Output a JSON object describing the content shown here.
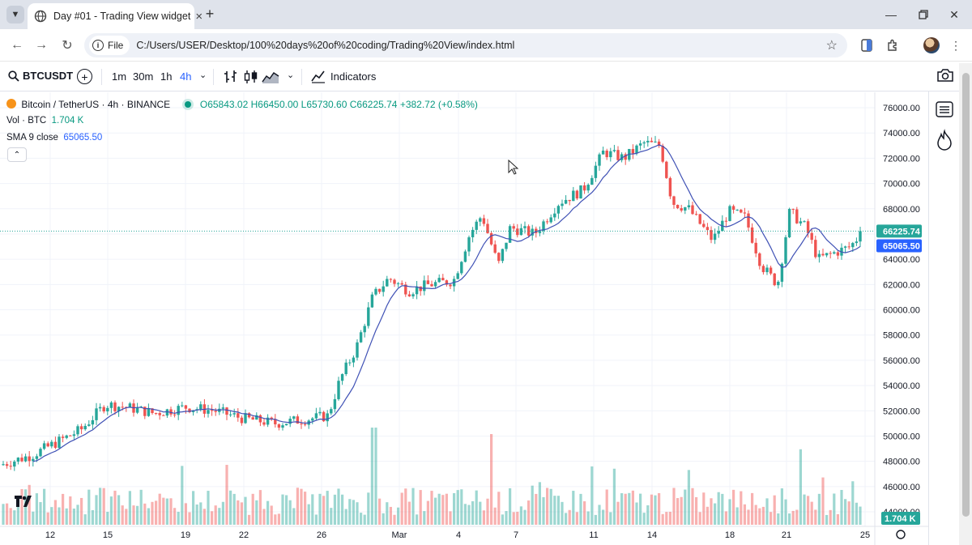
{
  "browser": {
    "tab_title": "Day #01 - Trading View widget",
    "new_tab_label": "+",
    "omnibox_label": "File",
    "url": "C:/Users/USER/Desktop/100%20days%20of%20coding/Trading%20View/index.html"
  },
  "toolbar": {
    "symbol": "BTCUSDT",
    "intervals": [
      "1m",
      "30m",
      "1h",
      "4h"
    ],
    "active_interval": "4h",
    "indicators_label": "Indicators"
  },
  "legend": {
    "title": "Bitcoin / TetherUS · 4h · BINANCE",
    "open": "O65843.02",
    "high": "H66450.00",
    "low": "L65730.60",
    "close": "C66225.74",
    "change": "+382.72 (+0.58%)",
    "vol_label": "Vol · BTC",
    "vol_value": "1.704 K",
    "sma_label": "SMA 9 close",
    "sma_value": "65065.50"
  },
  "colors": {
    "up": "#26a69a",
    "down": "#ef5350",
    "sma": "#3f51b5",
    "accent": "#2962ff"
  },
  "chart_data": {
    "type": "candlestick",
    "symbol": "BTCUSDT",
    "timeframe": "4h",
    "ylim": [
      44000,
      76000
    ],
    "y_ticks": [
      "76000.00",
      "74000.00",
      "72000.00",
      "70000.00",
      "68000.00",
      "66000.00",
      "64000.00",
      "62000.00",
      "60000.00",
      "58000.00",
      "56000.00",
      "54000.00",
      "52000.00",
      "50000.00",
      "48000.00",
      "46000.00",
      "44000.00"
    ],
    "x_ticks": [
      "12",
      "15",
      "19",
      "22",
      "26",
      "Mar",
      "4",
      "7",
      "11",
      "14",
      "18",
      "21",
      "25"
    ],
    "last_price": 66225.74,
    "last_price_label": "66225.74",
    "sma_last": 65065.5,
    "sma_last_label": "65065.50",
    "volume_last_label": "1.704 K",
    "price_path": [
      [
        0,
        47700
      ],
      [
        40,
        48500
      ],
      [
        70,
        49500
      ],
      [
        100,
        50500
      ],
      [
        130,
        52500
      ],
      [
        155,
        52300
      ],
      [
        190,
        51800
      ],
      [
        230,
        52300
      ],
      [
        265,
        52000
      ],
      [
        300,
        51400
      ],
      [
        340,
        51000
      ],
      [
        375,
        51300
      ],
      [
        405,
        51600
      ],
      [
        420,
        54500
      ],
      [
        440,
        57000
      ],
      [
        460,
        61000
      ],
      [
        480,
        62500
      ],
      [
        505,
        61500
      ],
      [
        530,
        62000
      ],
      [
        560,
        62300
      ],
      [
        580,
        66000
      ],
      [
        595,
        67500
      ],
      [
        605,
        65500
      ],
      [
        615,
        63500
      ],
      [
        630,
        66500
      ],
      [
        660,
        66000
      ],
      [
        690,
        68500
      ],
      [
        720,
        69500
      ],
      [
        745,
        72500
      ],
      [
        770,
        72000
      ],
      [
        795,
        73200
      ],
      [
        815,
        73000
      ],
      [
        830,
        68500
      ],
      [
        850,
        68000
      ],
      [
        880,
        65500
      ],
      [
        900,
        67800
      ],
      [
        920,
        67300
      ],
      [
        940,
        63500
      ],
      [
        960,
        62000
      ],
      [
        975,
        67800
      ],
      [
        995,
        66500
      ],
      [
        1010,
        64000
      ],
      [
        1030,
        64500
      ],
      [
        1050,
        65000
      ],
      [
        1065,
        66200
      ]
    ]
  }
}
